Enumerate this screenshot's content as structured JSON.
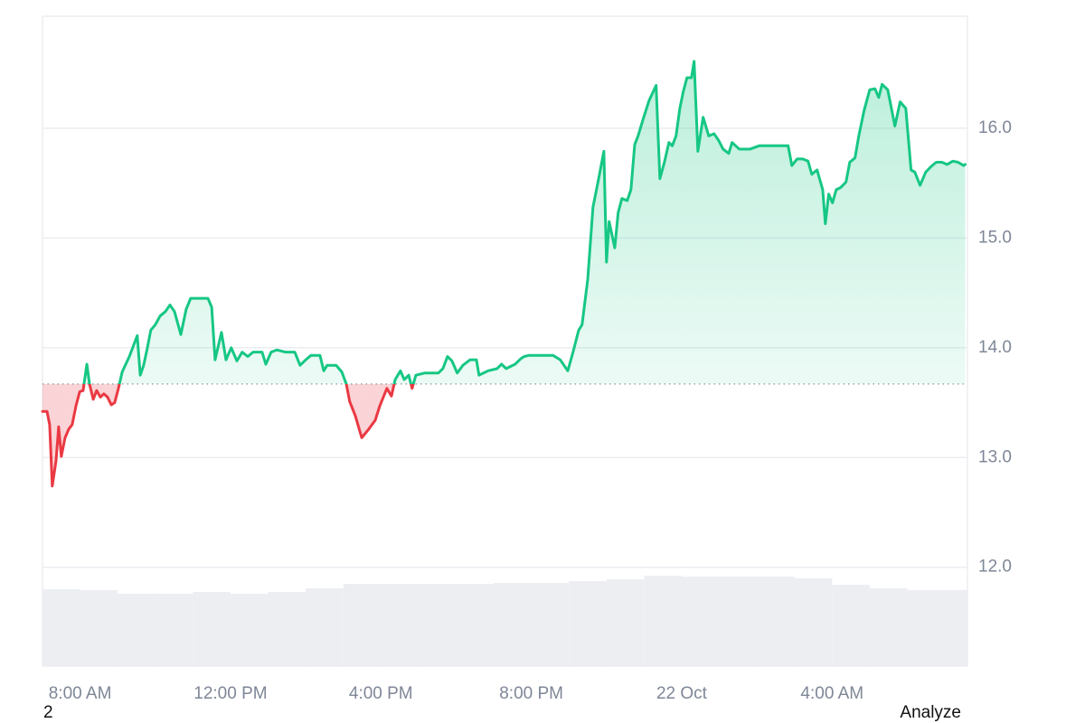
{
  "chart_data": {
    "type": "line",
    "baseline": 13.67,
    "up_color": "#16c784",
    "down_color": "#ea3943",
    "grid": true,
    "xlim": [
      7,
      31.6
    ],
    "xticks": [
      {
        "value": 8,
        "label": "8:00 AM"
      },
      {
        "value": 12,
        "label": "12:00 PM"
      },
      {
        "value": 16,
        "label": "4:00 PM"
      },
      {
        "value": 20,
        "label": "8:00 PM"
      },
      {
        "value": 24,
        "label": "22 Oct"
      },
      {
        "value": 28,
        "label": "4:00 AM"
      }
    ],
    "ylim": [
      11.1,
      17.02
    ],
    "yticks": [
      {
        "value": 12,
        "label": "12.0"
      },
      {
        "value": 13,
        "label": "13.0"
      },
      {
        "value": 14,
        "label": "14.0"
      },
      {
        "value": 15,
        "label": "15.0"
      },
      {
        "value": 16,
        "label": "16.0"
      }
    ],
    "x": [
      7.0,
      7.12,
      7.19,
      7.26,
      7.36,
      7.43,
      7.5,
      7.6,
      7.7,
      7.79,
      7.89,
      7.99,
      8.08,
      8.18,
      8.25,
      8.35,
      8.44,
      8.54,
      8.63,
      8.73,
      8.83,
      8.92,
      9.02,
      9.12,
      9.31,
      9.52,
      9.6,
      9.69,
      9.79,
      9.88,
      10.0,
      10.13,
      10.27,
      10.39,
      10.51,
      10.68,
      10.82,
      10.94,
      11.09,
      11.23,
      11.4,
      11.5,
      11.59,
      11.76,
      11.88,
      12.02,
      12.17,
      12.31,
      12.46,
      12.6,
      12.84,
      12.94,
      13.08,
      13.23,
      13.47,
      13.71,
      13.85,
      14.0,
      14.14,
      14.38,
      14.48,
      14.57,
      14.81,
      14.96,
      15.08,
      15.17,
      15.32,
      15.49,
      15.68,
      15.85,
      15.97,
      16.16,
      16.28,
      16.38,
      16.52,
      16.62,
      16.74,
      16.83,
      16.93,
      17.17,
      17.53,
      17.65,
      17.77,
      17.89,
      18.03,
      18.18,
      18.37,
      18.54,
      18.61,
      18.85,
      19.09,
      19.21,
      19.33,
      19.57,
      19.72,
      19.81,
      19.93,
      20.29,
      20.58,
      20.77,
      20.97,
      21.11,
      21.26,
      21.35,
      21.5,
      21.64,
      21.78,
      21.93,
      22.0,
      22.07,
      22.22,
      22.31,
      22.41,
      22.55,
      22.65,
      22.75,
      22.84,
      22.99,
      23.13,
      23.32,
      23.42,
      23.54,
      23.66,
      23.75,
      23.85,
      23.95,
      24.04,
      24.14,
      24.26,
      24.33,
      24.43,
      24.57,
      24.72,
      24.86,
      24.98,
      25.1,
      25.25,
      25.34,
      25.53,
      25.82,
      26.06,
      26.3,
      26.59,
      26.83,
      26.93,
      27.07,
      27.22,
      27.36,
      27.46,
      27.6,
      27.75,
      27.82,
      27.91,
      28.01,
      28.11,
      28.23,
      28.37,
      28.47,
      28.61,
      28.71,
      28.85,
      29.0,
      29.14,
      29.24,
      29.33,
      29.48,
      29.67,
      29.81,
      29.96,
      30.1,
      30.2,
      30.34,
      30.49,
      30.63,
      30.77,
      30.92,
      31.06,
      31.21,
      31.35,
      31.5,
      31.54
    ],
    "values": [
      13.42,
      13.42,
      13.3,
      12.74,
      12.97,
      13.28,
      13.01,
      13.18,
      13.26,
      13.3,
      13.47,
      13.6,
      13.61,
      13.85,
      13.67,
      13.53,
      13.61,
      13.55,
      13.58,
      13.55,
      13.48,
      13.5,
      13.63,
      13.78,
      13.92,
      14.11,
      13.75,
      13.84,
      14.0,
      14.16,
      14.21,
      14.29,
      14.33,
      14.39,
      14.33,
      14.12,
      14.35,
      14.45,
      14.45,
      14.45,
      14.45,
      14.37,
      13.89,
      14.14,
      13.89,
      14.0,
      13.88,
      13.96,
      13.92,
      13.96,
      13.96,
      13.85,
      13.96,
      13.98,
      13.96,
      13.96,
      13.84,
      13.89,
      13.93,
      13.93,
      13.79,
      13.84,
      13.84,
      13.78,
      13.67,
      13.51,
      13.38,
      13.18,
      13.26,
      13.34,
      13.47,
      13.63,
      13.56,
      13.71,
      13.79,
      13.71,
      13.75,
      13.63,
      13.75,
      13.77,
      13.77,
      13.81,
      13.92,
      13.88,
      13.77,
      13.84,
      13.89,
      13.89,
      13.75,
      13.79,
      13.81,
      13.85,
      13.81,
      13.85,
      13.9,
      13.92,
      13.93,
      13.93,
      13.93,
      13.89,
      13.79,
      13.96,
      14.16,
      14.21,
      14.62,
      15.28,
      15.52,
      15.79,
      14.78,
      15.15,
      14.91,
      15.23,
      15.36,
      15.34,
      15.44,
      15.85,
      15.93,
      16.1,
      16.25,
      16.39,
      15.54,
      15.69,
      15.87,
      15.84,
      15.93,
      16.18,
      16.33,
      16.46,
      16.46,
      16.61,
      15.79,
      16.1,
      15.93,
      15.95,
      15.89,
      15.81,
      15.77,
      15.87,
      15.81,
      15.81,
      15.84,
      15.84,
      15.84,
      15.84,
      15.66,
      15.72,
      15.72,
      15.7,
      15.58,
      15.62,
      15.44,
      15.13,
      15.4,
      15.32,
      15.44,
      15.46,
      15.51,
      15.69,
      15.73,
      15.93,
      16.16,
      16.35,
      16.36,
      16.28,
      16.4,
      16.35,
      16.02,
      16.24,
      16.18,
      15.62,
      15.6,
      15.48,
      15.6,
      15.65,
      15.69,
      15.69,
      15.67,
      15.7,
      15.69,
      15.66,
      15.67
    ],
    "volume": {
      "color": "#eceef2",
      "axis": "y2",
      "x": [
        7.5,
        8.5,
        9.5,
        10.5,
        11.5,
        12.5,
        13.5,
        14.5,
        15.5,
        16.5,
        17.5,
        18.5,
        19.5,
        20.5,
        21.5,
        22.5,
        23.5,
        24.5,
        25.5,
        26.5,
        27.5,
        28.5,
        29.5,
        30.5,
        31.5
      ],
      "values": [
        85,
        84,
        80,
        80,
        82,
        80,
        82,
        86,
        91,
        91,
        91,
        91,
        92,
        92,
        94,
        96,
        100,
        99,
        99,
        99,
        97,
        90,
        86,
        84,
        84
      ]
    },
    "y2lim": [
      0,
      100
    ]
  },
  "controls": {
    "page_number": "2",
    "analyze_button": "Analyze"
  }
}
